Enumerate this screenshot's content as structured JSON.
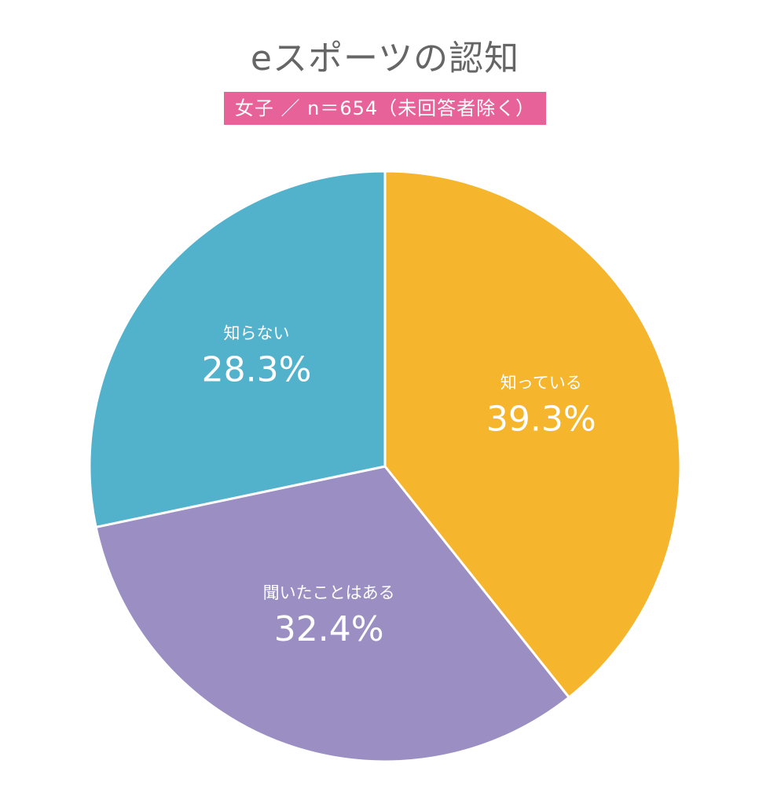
{
  "chart_data": {
    "type": "pie",
    "title": "eスポーツの認知",
    "subtitle": "女子 ／ n＝654（未回答者除く）",
    "slices": [
      {
        "label": "知っている",
        "value": 39.3,
        "value_text": "39.3%",
        "color": "#f5b52c"
      },
      {
        "label": "聞いたことはある",
        "value": 32.4,
        "value_text": "32.4%",
        "color": "#9a8ec3"
      },
      {
        "label": "知らない",
        "value": 28.3,
        "value_text": "28.3%",
        "color": "#52b2cc"
      }
    ],
    "start_angle": "12 o'clock",
    "direction": "clockwise",
    "colors": {
      "subtitle_background": "#e8629a",
      "title_text": "#666666"
    }
  }
}
